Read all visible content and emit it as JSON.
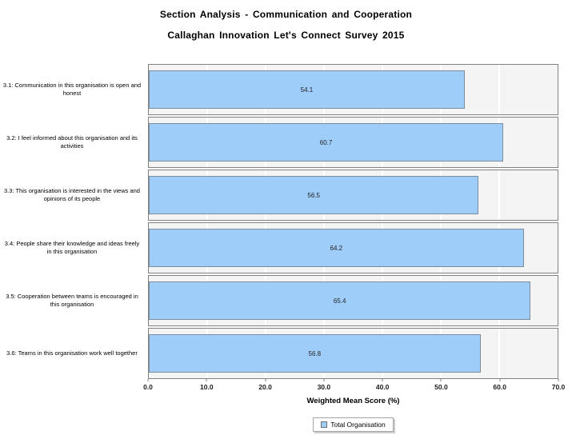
{
  "header": {
    "title": "Section Analysis - Communication and Cooperation",
    "subtitle": "Callaghan Innovation Let's Connect Survey 2015"
  },
  "chart_data": {
    "type": "bar",
    "orientation": "horizontal",
    "title": "Section Analysis - Communication and Cooperation",
    "subtitle": "Callaghan Innovation Let's Connect Survey 2015",
    "categories": [
      "3.1: Communication in this organisation is open and honest",
      "3.2: I feel informed about this organisation and its activities",
      "3.3: This organisation is interested in the views and opinions of its people",
      "3.4: People share their knowledge and ideas freely in this organisation",
      "3.5: Cooperation between teams is encouraged in this organisation",
      "3.6: Teams in this organisation work well together"
    ],
    "series": [
      {
        "name": "Total Organisation",
        "values": [
          54.1,
          60.7,
          56.5,
          64.2,
          65.4,
          56.8
        ]
      }
    ],
    "xlabel": "Weighted Mean Score (%)",
    "ylabel": "",
    "xlim": [
      0,
      70
    ],
    "xticks": [
      0,
      10,
      20,
      30,
      40,
      50,
      60,
      70
    ],
    "xtick_labels": [
      "0.0",
      "10.0",
      "20.0",
      "30.0",
      "40.0",
      "50.0",
      "60.0",
      "70.0"
    ],
    "grid": true,
    "legend_position": "bottom",
    "bar_color": "#9fcdfa",
    "bar_border_color": "#7f8c99",
    "plot_background": "#f4f4f4",
    "panel_border_color": "#808080",
    "value_labels": [
      "54.1",
      "60.7",
      "56.5",
      "64.2",
      "65.4",
      "56.8"
    ]
  },
  "legend": {
    "label": "Total Organisation"
  }
}
